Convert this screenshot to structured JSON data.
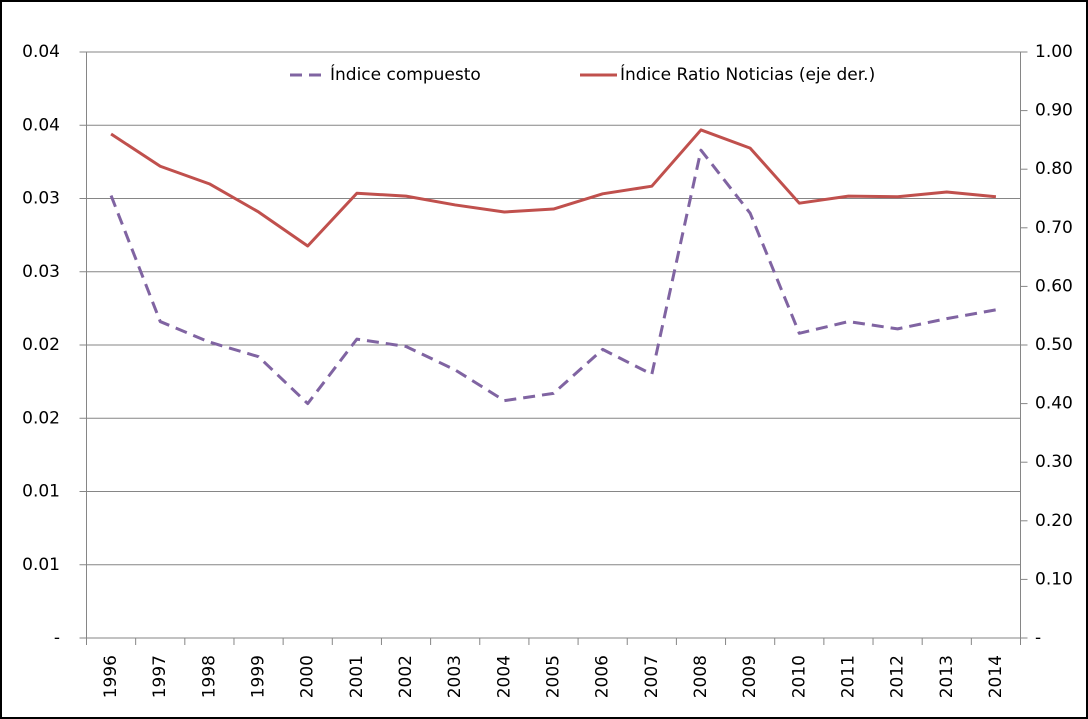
{
  "chart_data": {
    "type": "line",
    "categories": [
      "1996",
      "1997",
      "1998",
      "1999",
      "2000",
      "2001",
      "2002",
      "2003",
      "2004",
      "2005",
      "2006",
      "2007",
      "2008",
      "2009",
      "2010",
      "2011",
      "2012",
      "2013",
      "2014"
    ],
    "series": [
      {
        "name": "Índice compuesto",
        "color": "#8064a2",
        "dashed": true,
        "values": [
          0.0302,
          0.0216,
          0.0202,
          0.0192,
          0.016,
          0.0204,
          0.0199,
          0.0183,
          0.0162,
          0.0167,
          0.0197,
          0.018,
          0.0333,
          0.029,
          0.0208,
          0.0216,
          0.0211,
          0.0218,
          0.0224
        ]
      },
      {
        "name": "Índice Ratio Noticias (eje der.)",
        "color": "#c0504d",
        "axis": "y2",
        "values": [
          0.86,
          0.805,
          0.775,
          0.727,
          0.669,
          0.759,
          0.754,
          0.739,
          0.727,
          0.732,
          0.758,
          0.771,
          0.867,
          0.836,
          0.742,
          0.754,
          0.753,
          0.761,
          0.753
        ]
      }
    ],
    "ylim": [
      0,
      0.04
    ],
    "yticks": [
      {
        "value": 0,
        "label": "-"
      },
      {
        "value": 0.005,
        "label": "0.01"
      },
      {
        "value": 0.01,
        "label": "0.01"
      },
      {
        "value": 0.015,
        "label": "0.02"
      },
      {
        "value": 0.02,
        "label": "0.02"
      },
      {
        "value": 0.025,
        "label": "0.03"
      },
      {
        "value": 0.03,
        "label": "0.03"
      },
      {
        "value": 0.035,
        "label": "0.04"
      },
      {
        "value": 0.04,
        "label": "0.04"
      }
    ],
    "y2lim": [
      0,
      1
    ],
    "y2ticks": [
      {
        "value": 0,
        "label": "-"
      },
      {
        "value": 0.1,
        "label": "0.10"
      },
      {
        "value": 0.2,
        "label": "0.20"
      },
      {
        "value": 0.3,
        "label": "0.30"
      },
      {
        "value": 0.4,
        "label": "0.40"
      },
      {
        "value": 0.5,
        "label": "0.50"
      },
      {
        "value": 0.6,
        "label": "0.60"
      },
      {
        "value": 0.7,
        "label": "0.70"
      },
      {
        "value": 0.8,
        "label": "0.80"
      },
      {
        "value": 0.9,
        "label": "0.90"
      },
      {
        "value": 1,
        "label": "1.00"
      }
    ],
    "grid": true,
    "legend": "top"
  }
}
